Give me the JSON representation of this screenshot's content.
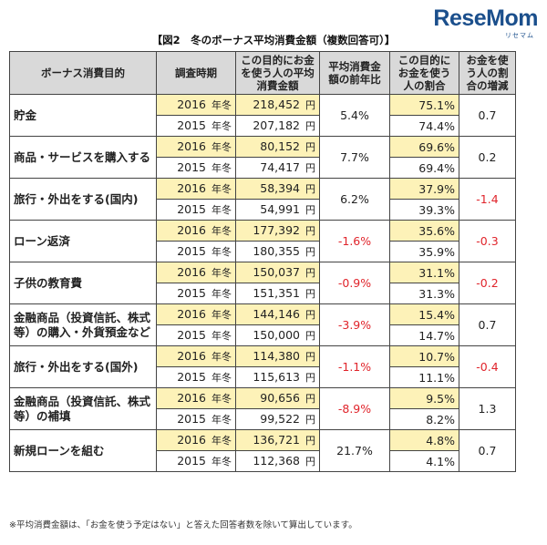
{
  "logo": {
    "text_main": "ReseMom",
    "sub": "リセマム"
  },
  "title": "【図2　冬のボーナス平均消費金額（複数回答可）】",
  "headers": {
    "purpose": "ボーナス消費目的",
    "period": "調査時期",
    "avg_amount": "この目的にお金を使う人の平均消費金額",
    "yoy": "平均消費金額の前年比",
    "ratio": "この目的にお金を使う人の割合",
    "ratio_diff": "お金を使う人の割合の増減"
  },
  "unit_yen": "円",
  "rows": [
    {
      "purpose": "貯金",
      "yoy": "5.4%",
      "diff": "0.7",
      "neg_yoy": false,
      "neg_diff": false,
      "y2016": {
        "year": "2016",
        "season": "年冬",
        "amount": "218,452",
        "ratio": "75.1%"
      },
      "y2015": {
        "year": "2015",
        "season": "年冬",
        "amount": "207,182",
        "ratio": "74.4%"
      }
    },
    {
      "purpose": "商品・サービスを購入する",
      "yoy": "7.7%",
      "diff": "0.2",
      "neg_yoy": false,
      "neg_diff": false,
      "y2016": {
        "year": "2016",
        "season": "年冬",
        "amount": "80,152",
        "ratio": "69.6%"
      },
      "y2015": {
        "year": "2015",
        "season": "年冬",
        "amount": "74,417",
        "ratio": "69.4%"
      }
    },
    {
      "purpose": "旅行・外出をする(国内)",
      "yoy": "6.2%",
      "diff": "-1.4",
      "neg_yoy": false,
      "neg_diff": true,
      "y2016": {
        "year": "2016",
        "season": "年冬",
        "amount": "58,394",
        "ratio": "37.9%"
      },
      "y2015": {
        "year": "2015",
        "season": "年冬",
        "amount": "54,991",
        "ratio": "39.3%"
      }
    },
    {
      "purpose": "ローン返済",
      "yoy": "-1.6%",
      "diff": "-0.3",
      "neg_yoy": true,
      "neg_diff": true,
      "y2016": {
        "year": "2016",
        "season": "年冬",
        "amount": "177,392",
        "ratio": "35.6%"
      },
      "y2015": {
        "year": "2015",
        "season": "年冬",
        "amount": "180,355",
        "ratio": "35.9%"
      }
    },
    {
      "purpose": "子供の教育費",
      "yoy": "-0.9%",
      "diff": "-0.2",
      "neg_yoy": true,
      "neg_diff": true,
      "y2016": {
        "year": "2016",
        "season": "年冬",
        "amount": "150,037",
        "ratio": "31.1%"
      },
      "y2015": {
        "year": "2015",
        "season": "年冬",
        "amount": "151,351",
        "ratio": "31.3%"
      }
    },
    {
      "purpose": "金融商品（投資信託、株式等）の購入・外貨預金など",
      "yoy": "-3.9%",
      "diff": "0.7",
      "neg_yoy": true,
      "neg_diff": false,
      "y2016": {
        "year": "2016",
        "season": "年冬",
        "amount": "144,146",
        "ratio": "15.4%"
      },
      "y2015": {
        "year": "2015",
        "season": "年冬",
        "amount": "150,000",
        "ratio": "14.7%"
      }
    },
    {
      "purpose": "旅行・外出をする(国外)",
      "yoy": "-1.1%",
      "diff": "-0.4",
      "neg_yoy": true,
      "neg_diff": true,
      "y2016": {
        "year": "2016",
        "season": "年冬",
        "amount": "114,380",
        "ratio": "10.7%"
      },
      "y2015": {
        "year": "2015",
        "season": "年冬",
        "amount": "115,613",
        "ratio": "11.1%"
      }
    },
    {
      "purpose": "金融商品（投資信託、株式等）の補填",
      "yoy": "-8.9%",
      "diff": "1.3",
      "neg_yoy": true,
      "neg_diff": false,
      "y2016": {
        "year": "2016",
        "season": "年冬",
        "amount": "90,656",
        "ratio": "9.5%"
      },
      "y2015": {
        "year": "2015",
        "season": "年冬",
        "amount": "99,522",
        "ratio": "8.2%"
      }
    },
    {
      "purpose": "新規ローンを組む",
      "yoy": "21.7%",
      "diff": "0.7",
      "neg_yoy": false,
      "neg_diff": false,
      "y2016": {
        "year": "2016",
        "season": "年冬",
        "amount": "136,721",
        "ratio": "4.8%"
      },
      "y2015": {
        "year": "2015",
        "season": "年冬",
        "amount": "112,368",
        "ratio": "4.1%"
      }
    }
  ],
  "colors": {
    "highlight": "#fdf2b8",
    "header_bg": "#d9d9d9",
    "negative": "#e0242b"
  },
  "footnote": "※平均消費金額は、「お金を使う予定はない」と答えた回答者数を除いて算出しています。"
}
